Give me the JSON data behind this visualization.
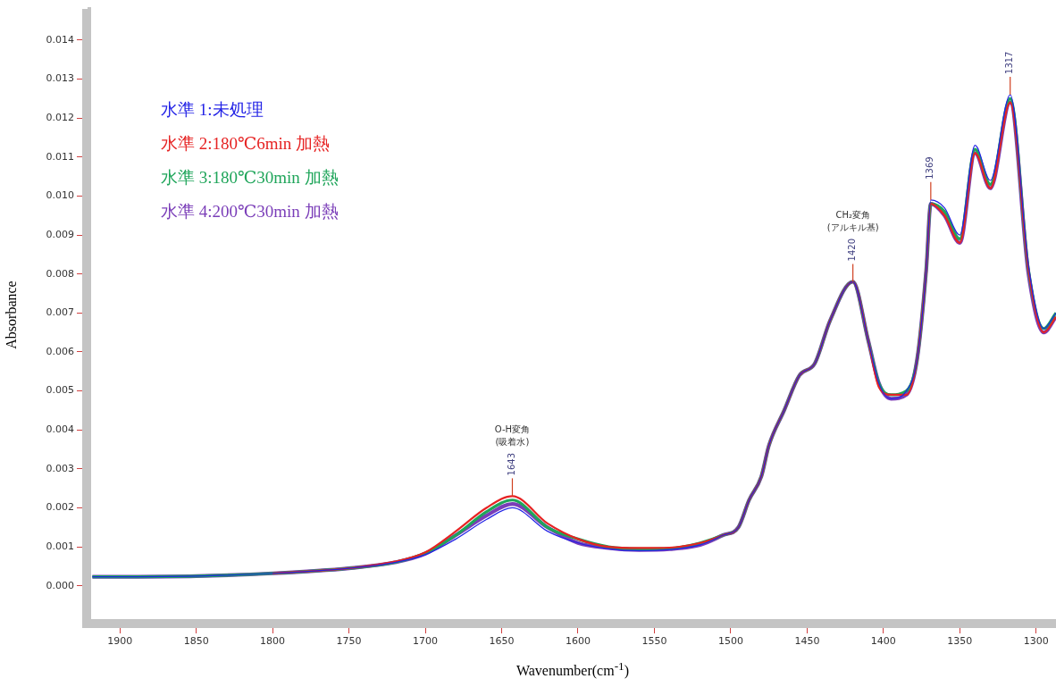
{
  "chart_data": {
    "type": "line",
    "xlabel": "Wavenumber(cm$^{-1}$)",
    "ylabel": "Absorbance",
    "x": [
      1918,
      1850,
      1800,
      1750,
      1720,
      1700,
      1680,
      1660,
      1643,
      1620,
      1600,
      1580,
      1560,
      1540,
      1520,
      1505,
      1495,
      1488,
      1480,
      1475,
      1465,
      1455,
      1445,
      1435,
      1420,
      1410,
      1403,
      1395,
      1385,
      1378,
      1372,
      1369,
      1360,
      1350,
      1340,
      1330,
      1317,
      1305,
      1295,
      1287
    ],
    "series": [
      {
        "name": "水準 1:未処理",
        "color": "#2323e6",
        "values": [
          0.00023,
          0.00025,
          0.00032,
          0.00045,
          0.0006,
          0.0008,
          0.0012,
          0.0017,
          0.002,
          0.0014,
          0.0011,
          0.00095,
          0.0009,
          0.00093,
          0.00105,
          0.0013,
          0.0015,
          0.0022,
          0.0028,
          0.0036,
          0.0045,
          0.0054,
          0.0057,
          0.0068,
          0.0078,
          0.0063,
          0.0052,
          0.0048,
          0.005,
          0.0058,
          0.0081,
          0.0099,
          0.0097,
          0.009,
          0.0113,
          0.0104,
          0.0126,
          0.0082,
          0.0066,
          0.007
        ]
      },
      {
        "name": "水準 2:180℃6min 加熱",
        "color": "#e62323",
        "values": [
          null,
          null,
          0.00032,
          0.00045,
          0.00062,
          0.00086,
          0.0014,
          0.002,
          0.0023,
          0.0016,
          0.0012,
          0.001,
          0.00097,
          0.00098,
          0.0011,
          0.0013,
          0.0015,
          0.0022,
          0.0028,
          0.0036,
          0.0045,
          0.0054,
          0.0057,
          0.0068,
          0.0078,
          0.0063,
          0.0051,
          0.0049,
          0.0049,
          0.0058,
          0.0081,
          0.0098,
          0.0095,
          0.0088,
          0.0111,
          0.0102,
          0.0124,
          0.0081,
          0.0065,
          0.0069
        ]
      },
      {
        "name": "水準 3:180℃30min 加熱",
        "color": "#1fa55a",
        "values": [
          0.00023,
          0.00025,
          0.00032,
          0.00045,
          0.0006,
          0.00084,
          0.0013,
          0.0019,
          0.0022,
          0.0015,
          0.0012,
          0.001,
          0.00095,
          0.00096,
          0.0011,
          0.0013,
          0.0015,
          0.0022,
          0.0028,
          0.0036,
          0.0045,
          0.0054,
          0.0057,
          0.0068,
          0.0078,
          0.0063,
          0.0052,
          0.0049,
          0.005,
          0.0058,
          0.0081,
          0.0098,
          0.0096,
          0.0089,
          0.0112,
          0.0103,
          0.0125,
          0.0081,
          0.0066,
          0.007
        ]
      },
      {
        "name": "水準 4:200℃30min 加熱",
        "color": "#7a3db8",
        "values": [
          0.00023,
          0.00025,
          0.00032,
          0.00045,
          0.0006,
          0.00082,
          0.0013,
          0.0018,
          0.0021,
          0.0015,
          0.0011,
          0.00097,
          0.00092,
          0.00094,
          0.00105,
          0.0013,
          0.0015,
          0.0022,
          0.0028,
          0.0036,
          0.0045,
          0.0054,
          0.0057,
          0.0068,
          0.0078,
          0.0063,
          0.0052,
          0.0048,
          0.0049,
          0.0058,
          0.0081,
          0.0098,
          0.0095,
          0.0088,
          0.0111,
          0.0102,
          0.0124,
          0.008,
          0.0065,
          0.0069
        ]
      }
    ],
    "xlim": [
      1920,
      1287
    ],
    "ylim": [
      -0.0009,
      0.0148
    ],
    "xticks": [
      1900,
      1850,
      1800,
      1750,
      1700,
      1650,
      1600,
      1550,
      1500,
      1450,
      1400,
      1350,
      1300
    ],
    "yticks": [
      {
        "value": 0,
        "label": "0.000"
      },
      {
        "value": 0.001,
        "label": "0.001"
      },
      {
        "value": 0.002,
        "label": "0.002"
      },
      {
        "value": 0.003,
        "label": "0.003"
      },
      {
        "value": 0.004,
        "label": "0.004"
      },
      {
        "value": 0.005,
        "label": "0.005"
      },
      {
        "value": 0.006,
        "label": "0.006"
      },
      {
        "value": 0.007,
        "label": "0.007"
      },
      {
        "value": 0.008,
        "label": "0.008"
      },
      {
        "value": 0.009,
        "label": "0.009"
      },
      {
        "value": 0.01,
        "label": "0.010"
      },
      {
        "value": 0.011,
        "label": "0.011"
      },
      {
        "value": 0.012,
        "label": "0.012"
      },
      {
        "value": 0.013,
        "label": "0.013"
      },
      {
        "value": 0.014,
        "label": "0.014"
      }
    ],
    "annotations": [
      "O-H変角",
      "(吸着水)",
      {
        "text": "1643",
        "x": 1643,
        "y": 0.0023
      },
      "CH₂変角",
      "(アルキル基)",
      {
        "text": "1420",
        "x": 1420,
        "y": 0.0078
      },
      {
        "text": "1369",
        "x": 1369,
        "y": 0.0099
      },
      {
        "text": "1317",
        "x": 1317,
        "y": 0.0126
      }
    ],
    "legend": "top left",
    "grid": false,
    "marker": "none",
    "line_style": "solid"
  }
}
